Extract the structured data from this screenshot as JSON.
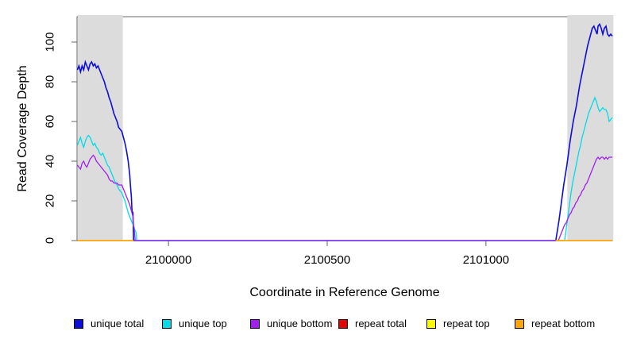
{
  "figure_title": "",
  "legend": {
    "items": [
      {
        "label": "unique total",
        "color": "#0D0DD6"
      },
      {
        "label": "unique top",
        "color": "#00DCE8"
      },
      {
        "label": "unique bottom",
        "color": "#A020F0"
      },
      {
        "label": "repeat total",
        "color": "#E60000"
      },
      {
        "label": "repeat top",
        "color": "#FFFF00"
      },
      {
        "label": "repeat bottom",
        "color": "#FFA500"
      }
    ]
  },
  "chart_data": {
    "type": "line",
    "title": "",
    "xlabel": "Coordinate in Reference Genome",
    "ylabel": "Read Coverage Depth",
    "xlim": [
      2099712,
      2101398
    ],
    "ylim": [
      0,
      112.8
    ],
    "x_ticks": [
      2100000,
      2100500,
      2101000
    ],
    "y_ticks": [
      0,
      20,
      40,
      60,
      80,
      100
    ],
    "grid": false,
    "legend_position": "bottom",
    "background": "#FFFFFF",
    "shaded_regions": [
      {
        "name": "left-repeat-region",
        "x0": 2099713,
        "x1": 2099855,
        "color": "#DCDCDC"
      },
      {
        "name": "right-repeat-region",
        "x0": 2101255,
        "x1": 2101400,
        "color": "#DCDCDC"
      }
    ],
    "series": [
      {
        "name": "unique total",
        "color": "#0D0DD6",
        "width": 1.6,
        "segments": [
          [
            [
              2099713,
              86
            ],
            [
              2099718,
              88
            ],
            [
              2099723,
              85
            ],
            [
              2099728,
              88
            ],
            [
              2099733,
              86
            ],
            [
              2099738,
              90
            ],
            [
              2099743,
              88
            ],
            [
              2099748,
              86
            ],
            [
              2099753,
              89
            ],
            [
              2099758,
              90
            ],
            [
              2099763,
              88
            ],
            [
              2099768,
              89
            ],
            [
              2099773,
              87
            ],
            [
              2099778,
              88
            ],
            [
              2099783,
              86
            ],
            [
              2099788,
              84
            ],
            [
              2099793,
              82
            ],
            [
              2099798,
              80
            ],
            [
              2099803,
              77
            ],
            [
              2099808,
              75
            ],
            [
              2099813,
              72
            ],
            [
              2099818,
              70
            ],
            [
              2099823,
              67
            ],
            [
              2099828,
              64
            ],
            [
              2099833,
              62
            ],
            [
              2099838,
              60
            ],
            [
              2099843,
              57
            ],
            [
              2099848,
              56
            ],
            [
              2099853,
              55
            ],
            [
              2099858,
              52
            ],
            [
              2099863,
              49
            ],
            [
              2099868,
              45
            ],
            [
              2099873,
              40
            ],
            [
              2099878,
              33
            ],
            [
              2099880,
              28
            ],
            [
              2099883,
              22
            ],
            [
              2099885,
              15
            ],
            [
              2099888,
              14
            ],
            [
              2099890,
              0
            ],
            [
              2101218,
              0
            ],
            [
              2101220,
              0
            ],
            [
              2101225,
              5
            ],
            [
              2101230,
              10
            ],
            [
              2101235,
              16
            ],
            [
              2101240,
              22
            ],
            [
              2101245,
              28
            ],
            [
              2101250,
              33
            ],
            [
              2101255,
              38
            ],
            [
              2101260,
              44
            ],
            [
              2101265,
              50
            ],
            [
              2101270,
              55
            ],
            [
              2101275,
              60
            ],
            [
              2101280,
              64
            ],
            [
              2101285,
              68
            ],
            [
              2101290,
              73
            ],
            [
              2101295,
              78
            ],
            [
              2101300,
              82
            ],
            [
              2101305,
              86
            ],
            [
              2101310,
              90
            ],
            [
              2101315,
              94
            ],
            [
              2101320,
              98
            ],
            [
              2101325,
              101
            ],
            [
              2101330,
              104
            ],
            [
              2101335,
              107
            ],
            [
              2101340,
              108
            ],
            [
              2101345,
              106
            ],
            [
              2101350,
              104
            ],
            [
              2101353,
              108
            ],
            [
              2101358,
              109
            ],
            [
              2101363,
              107
            ],
            [
              2101368,
              104
            ],
            [
              2101373,
              107
            ],
            [
              2101378,
              108
            ],
            [
              2101383,
              104
            ],
            [
              2101388,
              103
            ],
            [
              2101393,
              104
            ],
            [
              2101398,
              103
            ]
          ]
        ]
      },
      {
        "name": "unique top",
        "color": "#00DCE8",
        "width": 1.3,
        "segments": [
          [
            [
              2099713,
              48
            ],
            [
              2099718,
              50
            ],
            [
              2099723,
              52
            ],
            [
              2099728,
              49
            ],
            [
              2099733,
              47
            ],
            [
              2099738,
              50
            ],
            [
              2099743,
              52
            ],
            [
              2099748,
              53
            ],
            [
              2099753,
              52
            ],
            [
              2099758,
              50
            ],
            [
              2099763,
              48
            ],
            [
              2099768,
              49
            ],
            [
              2099773,
              47
            ],
            [
              2099778,
              46
            ],
            [
              2099783,
              44
            ],
            [
              2099788,
              43
            ],
            [
              2099793,
              44
            ],
            [
              2099798,
              42
            ],
            [
              2099803,
              40
            ],
            [
              2099808,
              38
            ],
            [
              2099813,
              37
            ],
            [
              2099818,
              35
            ],
            [
              2099823,
              33
            ],
            [
              2099828,
              31
            ],
            [
              2099833,
              29
            ],
            [
              2099838,
              28
            ],
            [
              2099843,
              26
            ],
            [
              2099848,
              25
            ],
            [
              2099853,
              24
            ],
            [
              2099858,
              22
            ],
            [
              2099863,
              20
            ],
            [
              2099868,
              17
            ],
            [
              2099873,
              14
            ],
            [
              2099878,
              12
            ],
            [
              2099883,
              10
            ],
            [
              2099888,
              8
            ],
            [
              2099893,
              6
            ],
            [
              2099895,
              5
            ],
            [
              2099898,
              4
            ],
            [
              2099900,
              0
            ],
            [
              2101245,
              0
            ],
            [
              2101248,
              0
            ],
            [
              2101253,
              6
            ],
            [
              2101258,
              12
            ],
            [
              2101263,
              18
            ],
            [
              2101268,
              24
            ],
            [
              2101273,
              29
            ],
            [
              2101278,
              33
            ],
            [
              2101283,
              37
            ],
            [
              2101288,
              41
            ],
            [
              2101293,
              45
            ],
            [
              2101298,
              48
            ],
            [
              2101303,
              52
            ],
            [
              2101308,
              55
            ],
            [
              2101313,
              58
            ],
            [
              2101318,
              61
            ],
            [
              2101323,
              64
            ],
            [
              2101328,
              66
            ],
            [
              2101333,
              68
            ],
            [
              2101338,
              70
            ],
            [
              2101343,
              72
            ],
            [
              2101348,
              70
            ],
            [
              2101353,
              67
            ],
            [
              2101358,
              65
            ],
            [
              2101363,
              66
            ],
            [
              2101368,
              67
            ],
            [
              2101373,
              66
            ],
            [
              2101378,
              66
            ],
            [
              2101383,
              64
            ],
            [
              2101388,
              60
            ],
            [
              2101393,
              61
            ],
            [
              2101398,
              62
            ]
          ]
        ]
      },
      {
        "name": "unique bottom",
        "color": "#A020F0",
        "width": 1.3,
        "segments": [
          [
            [
              2099713,
              38
            ],
            [
              2099718,
              37
            ],
            [
              2099723,
              36
            ],
            [
              2099728,
              39
            ],
            [
              2099733,
              40
            ],
            [
              2099738,
              38
            ],
            [
              2099743,
              37
            ],
            [
              2099748,
              39
            ],
            [
              2099753,
              41
            ],
            [
              2099758,
              42
            ],
            [
              2099763,
              43
            ],
            [
              2099768,
              42
            ],
            [
              2099773,
              40
            ],
            [
              2099778,
              39
            ],
            [
              2099783,
              38
            ],
            [
              2099788,
              37
            ],
            [
              2099793,
              36
            ],
            [
              2099798,
              35
            ],
            [
              2099803,
              34
            ],
            [
              2099808,
              33
            ],
            [
              2099813,
              31
            ],
            [
              2099818,
              30
            ],
            [
              2099823,
              30
            ],
            [
              2099828,
              29
            ],
            [
              2099833,
              29
            ],
            [
              2099838,
              29
            ],
            [
              2099843,
              28
            ],
            [
              2099848,
              28
            ],
            [
              2099853,
              28
            ],
            [
              2099858,
              26
            ],
            [
              2099863,
              24
            ],
            [
              2099868,
              22
            ],
            [
              2099873,
              20
            ],
            [
              2099878,
              18
            ],
            [
              2099883,
              15
            ],
            [
              2099888,
              12
            ],
            [
              2099890,
              8
            ],
            [
              2099893,
              4
            ],
            [
              2099895,
              0
            ],
            [
              2101225,
              0
            ],
            [
              2101228,
              0
            ],
            [
              2101233,
              2
            ],
            [
              2101238,
              4
            ],
            [
              2101243,
              6
            ],
            [
              2101248,
              8
            ],
            [
              2101253,
              9
            ],
            [
              2101258,
              11
            ],
            [
              2101263,
              13
            ],
            [
              2101268,
              14
            ],
            [
              2101273,
              16
            ],
            [
              2101278,
              17
            ],
            [
              2101283,
              19
            ],
            [
              2101288,
              20
            ],
            [
              2101293,
              22
            ],
            [
              2101298,
              23
            ],
            [
              2101303,
              25
            ],
            [
              2101308,
              26
            ],
            [
              2101313,
              28
            ],
            [
              2101318,
              29
            ],
            [
              2101323,
              31
            ],
            [
              2101328,
              33
            ],
            [
              2101333,
              35
            ],
            [
              2101338,
              37
            ],
            [
              2101343,
              39
            ],
            [
              2101348,
              41
            ],
            [
              2101353,
              42
            ],
            [
              2101358,
              41
            ],
            [
              2101363,
              42
            ],
            [
              2101368,
              42
            ],
            [
              2101373,
              41
            ],
            [
              2101378,
              42
            ],
            [
              2101383,
              41
            ],
            [
              2101388,
              42
            ],
            [
              2101393,
              42
            ],
            [
              2101398,
              42
            ]
          ]
        ]
      },
      {
        "name": "repeat total",
        "color": "#E60000",
        "width": 1.3,
        "segments": [
          [
            [
              2099713,
              0
            ],
            [
              2099890,
              0
            ]
          ],
          [
            [
              2101220,
              0
            ],
            [
              2101398,
              0
            ]
          ]
        ]
      },
      {
        "name": "repeat top",
        "color": "#FFFF00",
        "width": 1.3,
        "segments": [
          [
            [
              2099713,
              0
            ],
            [
              2099890,
              0
            ]
          ],
          [
            [
              2101220,
              0
            ],
            [
              2101398,
              0
            ]
          ]
        ]
      },
      {
        "name": "repeat bottom",
        "color": "#FFA500",
        "width": 1.4,
        "segments": [
          [
            [
              2099713,
              0
            ],
            [
              2099890,
              0
            ]
          ],
          [
            [
              2101220,
              0
            ],
            [
              2101398,
              0
            ]
          ]
        ]
      }
    ]
  }
}
